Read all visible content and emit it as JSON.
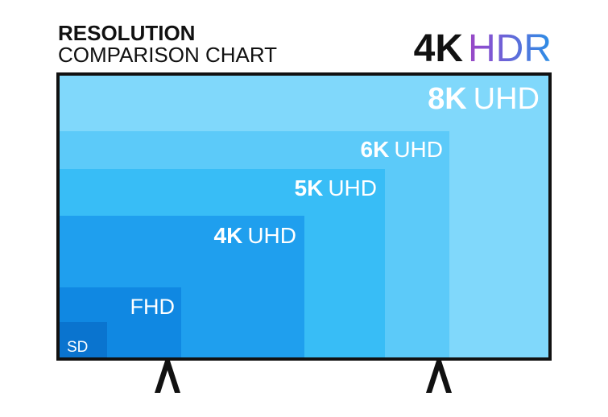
{
  "header": {
    "title": "RESOLUTION",
    "subtitle": "COMPARISON CHART"
  },
  "logo": {
    "bold": "4K",
    "text": "HDR"
  },
  "levels": [
    {
      "name": "8K",
      "suffix": "UHD"
    },
    {
      "name": "6K",
      "suffix": "UHD"
    },
    {
      "name": "5K",
      "suffix": "UHD"
    },
    {
      "name": "4K",
      "suffix": "UHD"
    },
    {
      "name": "FHD"
    },
    {
      "name": "SD"
    }
  ]
}
